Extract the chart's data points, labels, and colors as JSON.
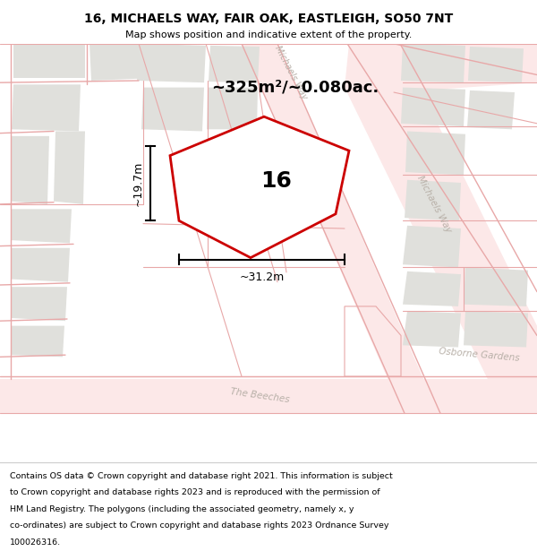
{
  "title_line1": "16, MICHAELS WAY, FAIR OAK, EASTLEIGH, SO50 7NT",
  "title_line2": "Map shows position and indicative extent of the property.",
  "footer_lines": [
    "Contains OS data © Crown copyright and database right 2021. This information is subject to Crown copyright and database rights 2023 and is reproduced with the permission of",
    "HM Land Registry. The polygons (including the associated geometry, namely x, y co-ordinates) are subject to Crown copyright and database rights 2023 Ordnance Survey",
    "100026316."
  ],
  "area_text": "~325m²/~0.080ac.",
  "property_number": "16",
  "dim_width": "~31.2m",
  "dim_height": "~19.7m",
  "map_bg": "#f9f9f7",
  "block_color": "#e0e0dc",
  "road_line_color": "#e8a8a8",
  "road_fill_color": "#f5dada",
  "highlight_red": "#cc0000",
  "road_label_color": "#b8b0a8",
  "title_fontsize": 10,
  "subtitle_fontsize": 8,
  "area_fontsize": 13,
  "number_fontsize": 18,
  "dim_fontsize": 9,
  "road_label_fontsize": 7,
  "footer_fontsize": 6.8
}
